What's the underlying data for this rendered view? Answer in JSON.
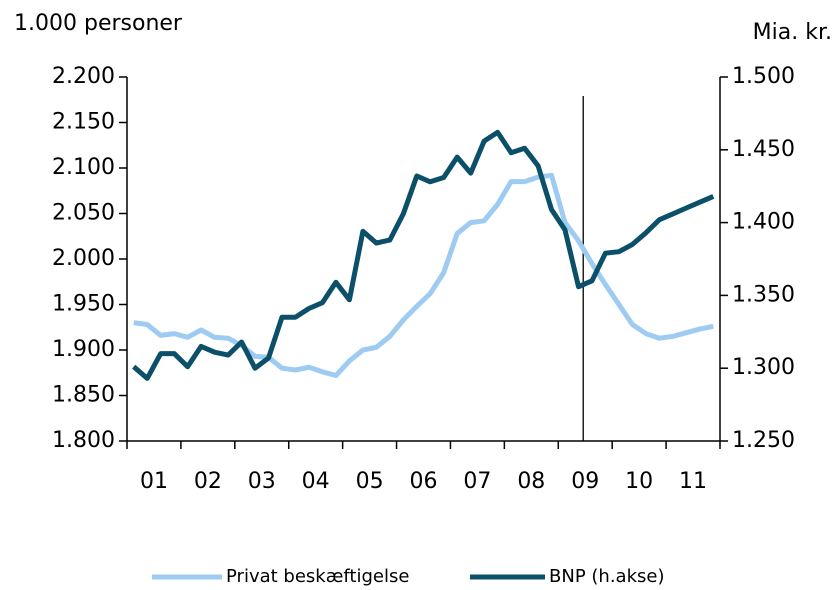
{
  "chart_data": {
    "type": "line",
    "y_title": "1.000 personer",
    "y2_title": "Mia. kr.",
    "categories": [
      null,
      "01",
      null,
      null,
      null,
      "02",
      null,
      null,
      null,
      "03",
      null,
      null,
      null,
      "04",
      null,
      null,
      null,
      "05",
      null,
      null,
      null,
      "06",
      null,
      null,
      null,
      "07",
      null,
      null,
      null,
      "08",
      null,
      null,
      null,
      "09",
      null,
      null,
      null,
      "10",
      null,
      null,
      null,
      "11",
      null,
      null
    ],
    "series": [
      {
        "name": "Privat beskæftigelse",
        "color": "#9ecbf2",
        "axis": "y",
        "values": [
          1930,
          1928,
          1916,
          1918,
          1914,
          1922,
          1914,
          1913,
          1905,
          1893,
          1892,
          1880,
          1878,
          1881,
          1876,
          1872,
          1888,
          1900,
          1903,
          1915,
          1933,
          1948,
          1962,
          1985,
          2028,
          2040,
          2042,
          2060,
          2085,
          2085,
          2090,
          2092,
          2040,
          2020,
          1995,
          1972,
          1950,
          1928,
          1918,
          1913,
          1915,
          1919,
          1923,
          1926
        ]
      },
      {
        "name": "BNP (h.akse)",
        "color": "#0b5068",
        "axis": "y2",
        "values": [
          1301,
          1293,
          1310,
          1310,
          1301,
          1315,
          1311,
          1309,
          1318,
          1300,
          1307,
          1335,
          1335,
          1341,
          1345,
          1359,
          1347,
          1394,
          1386,
          1388,
          1406,
          1432,
          1428,
          1431,
          1445,
          1434,
          1456,
          1462,
          1448,
          1451,
          1439,
          1409,
          1395,
          1356,
          1360,
          1379,
          1380,
          1385,
          1393,
          1402,
          1406,
          1410,
          1414,
          1418
        ]
      }
    ],
    "ylim": [
      1800,
      2200
    ],
    "yticks": [
      {
        "value": 1800,
        "label": "1.800"
      },
      {
        "value": 1850,
        "label": "1.850"
      },
      {
        "value": 1900,
        "label": "1.900"
      },
      {
        "value": 1950,
        "label": "1.950"
      },
      {
        "value": 2000,
        "label": "2.000"
      },
      {
        "value": 2050,
        "label": "2.050"
      },
      {
        "value": 2100,
        "label": "2.100"
      },
      {
        "value": 2150,
        "label": "2.150"
      },
      {
        "value": 2200,
        "label": "2.200"
      }
    ],
    "y2lim": [
      1250,
      1500
    ],
    "y2ticks": [
      {
        "value": 1250,
        "label": "1.250"
      },
      {
        "value": 1300,
        "label": "1.300"
      },
      {
        "value": 1350,
        "label": "1.350"
      },
      {
        "value": 1400,
        "label": "1.400"
      },
      {
        "value": 1450,
        "label": "1.450"
      },
      {
        "value": 1500,
        "label": "1.500"
      }
    ],
    "grid": false,
    "legend": "bottom"
  }
}
